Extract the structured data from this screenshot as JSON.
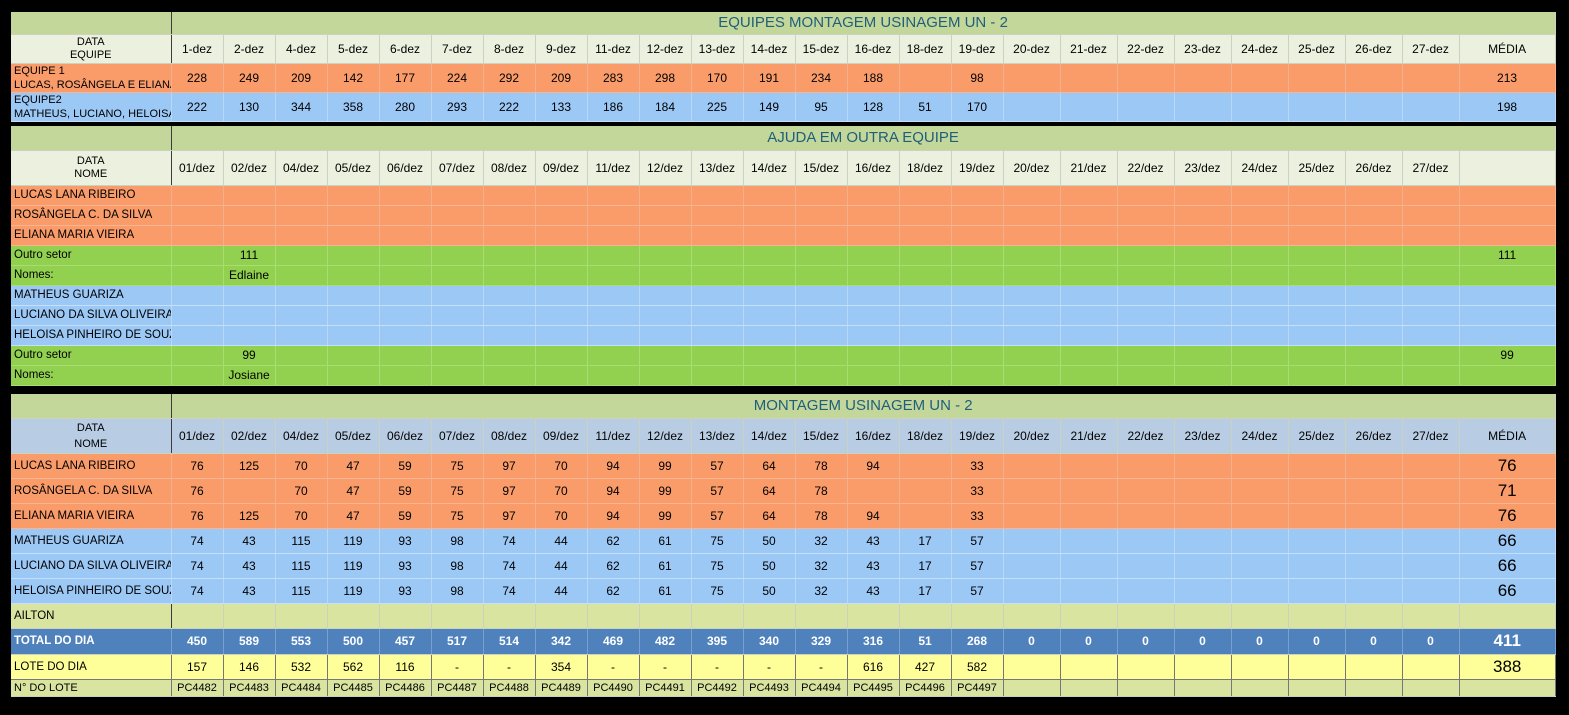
{
  "sec1": {
    "title": "EQUIPES MONTAGEM USINAGEM UN - 2",
    "header_label": [
      "DATA",
      "EQUIPE"
    ],
    "dates": [
      "1-dez",
      "2-dez",
      "4-dez",
      "5-dez",
      "6-dez",
      "7-dez",
      "8-dez",
      "9-dez",
      "11-dez",
      "12-dez",
      "13-dez",
      "14-dez",
      "15-dez",
      "16-dez",
      "18-dez",
      "19-dez",
      "20-dez",
      "21-dez",
      "22-dez",
      "23-dez",
      "24-dez",
      "25-dez",
      "26-dez",
      "27-dez"
    ],
    "media_label": "MÉDIA",
    "rows": [
      {
        "label1": "EQUIPE 1",
        "label2": "LUCAS, ROSÂNGELA E ELIANA",
        "color": "orange",
        "values": [
          "228",
          "249",
          "209",
          "142",
          "177",
          "224",
          "292",
          "209",
          "283",
          "298",
          "170",
          "191",
          "234",
          "188",
          "",
          "98",
          "",
          "",
          "",
          "",
          "",
          "",
          "",
          ""
        ],
        "media": "213"
      },
      {
        "label1": "EQUIPE2",
        "label2": "MATHEUS, LUCIANO, HELOISA",
        "color": "blue",
        "values": [
          "222",
          "130",
          "344",
          "358",
          "280",
          "293",
          "222",
          "133",
          "186",
          "184",
          "225",
          "149",
          "95",
          "128",
          "51",
          "170",
          "",
          "",
          "",
          "",
          "",
          "",
          "",
          ""
        ],
        "media": "198"
      }
    ]
  },
  "sec2": {
    "title": "AJUDA EM OUTRA EQUIPE",
    "header_label": [
      "DATA",
      "NOME"
    ],
    "dates": [
      "01/dez",
      "02/dez",
      "04/dez",
      "05/dez",
      "06/dez",
      "07/dez",
      "08/dez",
      "09/dez",
      "11/dez",
      "12/dez",
      "13/dez",
      "14/dez",
      "15/dez",
      "16/dez",
      "18/dez",
      "19/dez",
      "20/dez",
      "21/dez",
      "22/dez",
      "23/dez",
      "24/dez",
      "25/dez",
      "26/dez",
      "27/dez"
    ],
    "rows": [
      {
        "label": "LUCAS LANA RIBEIRO",
        "color": "orange",
        "values": [
          "",
          "",
          "",
          "",
          "",
          "",
          "",
          "",
          "",
          "",
          "",
          "",
          "",
          "",
          "",
          "",
          "",
          "",
          "",
          "",
          "",
          "",
          "",
          ""
        ],
        "media": ""
      },
      {
        "label": "ROSÂNGELA C. DA SILVA",
        "color": "orange",
        "values": [
          "",
          "",
          "",
          "",
          "",
          "",
          "",
          "",
          "",
          "",
          "",
          "",
          "",
          "",
          "",
          "",
          "",
          "",
          "",
          "",
          "",
          "",
          "",
          ""
        ],
        "media": ""
      },
      {
        "label": "ELIANA MARIA VIEIRA",
        "color": "orange",
        "values": [
          "",
          "",
          "",
          "",
          "",
          "",
          "",
          "",
          "",
          "",
          "",
          "",
          "",
          "",
          "",
          "",
          "",
          "",
          "",
          "",
          "",
          "",
          "",
          ""
        ],
        "media": ""
      },
      {
        "label": "Outro setor",
        "color": "green",
        "values": [
          "",
          "111",
          "",
          "",
          "",
          "",
          "",
          "",
          "",
          "",
          "",
          "",
          "",
          "",
          "",
          "",
          "",
          "",
          "",
          "",
          "",
          "",
          "",
          ""
        ],
        "media": "111"
      },
      {
        "label": "Nomes:",
        "color": "green",
        "values": [
          "",
          "Edlaine",
          "",
          "",
          "",
          "",
          "",
          "",
          "",
          "",
          "",
          "",
          "",
          "",
          "",
          "",
          "",
          "",
          "",
          "",
          "",
          "",
          "",
          ""
        ],
        "media": ""
      },
      {
        "label": "MATHEUS GUARIZA",
        "color": "blue",
        "values": [
          "",
          "",
          "",
          "",
          "",
          "",
          "",
          "",
          "",
          "",
          "",
          "",
          "",
          "",
          "",
          "",
          "",
          "",
          "",
          "",
          "",
          "",
          "",
          ""
        ],
        "media": ""
      },
      {
        "label": "LUCIANO DA SILVA OLIVEIRA",
        "color": "blue",
        "values": [
          "",
          "",
          "",
          "",
          "",
          "",
          "",
          "",
          "",
          "",
          "",
          "",
          "",
          "",
          "",
          "",
          "",
          "",
          "",
          "",
          "",
          "",
          "",
          ""
        ],
        "media": ""
      },
      {
        "label": "HELOISA PINHEIRO DE SOUZA",
        "color": "blue",
        "values": [
          "",
          "",
          "",
          "",
          "",
          "",
          "",
          "",
          "",
          "",
          "",
          "",
          "",
          "",
          "",
          "",
          "",
          "",
          "",
          "",
          "",
          "",
          "",
          ""
        ],
        "media": ""
      },
      {
        "label": "Outro setor",
        "color": "green",
        "values": [
          "",
          "99",
          "",
          "",
          "",
          "",
          "",
          "",
          "",
          "",
          "",
          "",
          "",
          "",
          "",
          "",
          "",
          "",
          "",
          "",
          "",
          "",
          "",
          ""
        ],
        "media": "99"
      },
      {
        "label": "Nomes:",
        "color": "green",
        "values": [
          "",
          "Josiane",
          "",
          "",
          "",
          "",
          "",
          "",
          "",
          "",
          "",
          "",
          "",
          "",
          "",
          "",
          "",
          "",
          "",
          "",
          "",
          "",
          "",
          ""
        ],
        "media": ""
      }
    ]
  },
  "sec3": {
    "title": "MONTAGEM USINAGEM UN - 2",
    "header_label": [
      "DATA",
      "NOME"
    ],
    "dates": [
      "01/dez",
      "02/dez",
      "04/dez",
      "05/dez",
      "06/dez",
      "07/dez",
      "08/dez",
      "09/dez",
      "11/dez",
      "12/dez",
      "13/dez",
      "14/dez",
      "15/dez",
      "16/dez",
      "18/dez",
      "19/dez",
      "20/dez",
      "21/dez",
      "22/dez",
      "23/dez",
      "24/dez",
      "25/dez",
      "26/dez",
      "27/dez"
    ],
    "media_label": "MÉDIA",
    "rows": [
      {
        "label": "LUCAS LANA RIBEIRO",
        "color": "orange",
        "values": [
          "76",
          "125",
          "70",
          "47",
          "59",
          "75",
          "97",
          "70",
          "94",
          "99",
          "57",
          "64",
          "78",
          "94",
          "",
          "33",
          "",
          "",
          "",
          "",
          "",
          "",
          "",
          ""
        ],
        "media": "76"
      },
      {
        "label": "ROSÂNGELA C. DA SILVA",
        "color": "orange",
        "values": [
          "76",
          "",
          "70",
          "47",
          "59",
          "75",
          "97",
          "70",
          "94",
          "99",
          "57",
          "64",
          "78",
          "",
          "",
          "33",
          "",
          "",
          "",
          "",
          "",
          "",
          "",
          ""
        ],
        "media": "71"
      },
      {
        "label": "ELIANA MARIA VIEIRA",
        "color": "orange",
        "values": [
          "76",
          "125",
          "70",
          "47",
          "59",
          "75",
          "97",
          "70",
          "94",
          "99",
          "57",
          "64",
          "78",
          "94",
          "",
          "33",
          "",
          "",
          "",
          "",
          "",
          "",
          "",
          ""
        ],
        "media": "76"
      },
      {
        "label": "MATHEUS GUARIZA",
        "color": "blue",
        "values": [
          "74",
          "43",
          "115",
          "119",
          "93",
          "98",
          "74",
          "44",
          "62",
          "61",
          "75",
          "50",
          "32",
          "43",
          "17",
          "57",
          "",
          "",
          "",
          "",
          "",
          "",
          "",
          ""
        ],
        "media": "66"
      },
      {
        "label": "LUCIANO DA SILVA OLIVEIRA",
        "color": "blue",
        "values": [
          "74",
          "43",
          "115",
          "119",
          "93",
          "98",
          "74",
          "44",
          "62",
          "61",
          "75",
          "50",
          "32",
          "43",
          "17",
          "57",
          "",
          "",
          "",
          "",
          "",
          "",
          "",
          ""
        ],
        "media": "66"
      },
      {
        "label": "HELOISA PINHEIRO DE SOUZA",
        "color": "blue",
        "values": [
          "74",
          "43",
          "115",
          "119",
          "93",
          "98",
          "74",
          "44",
          "62",
          "61",
          "75",
          "50",
          "32",
          "43",
          "17",
          "57",
          "",
          "",
          "",
          "",
          "",
          "",
          "",
          ""
        ],
        "media": "66"
      },
      {
        "label": "AILTON",
        "color": "lime",
        "values": [
          "",
          "",
          "",
          "",
          "",
          "",
          "",
          "",
          "",
          "",
          "",
          "",
          "",
          "",
          "",
          "",
          "",
          "",
          "",
          "",
          "",
          "",
          "",
          ""
        ],
        "media": ""
      }
    ],
    "total": {
      "label": "TOTAL DO DIA",
      "values": [
        "450",
        "589",
        "553",
        "500",
        "457",
        "517",
        "514",
        "342",
        "469",
        "482",
        "395",
        "340",
        "329",
        "316",
        "51",
        "268",
        "0",
        "0",
        "0",
        "0",
        "0",
        "0",
        "0",
        "0"
      ],
      "media": "411"
    },
    "lote": {
      "label": "LOTE DO DIA",
      "values": [
        "157",
        "146",
        "532",
        "562",
        "116",
        "-",
        "-",
        "354",
        "-",
        "-",
        "-",
        "-",
        "-",
        "616",
        "427",
        "582",
        "",
        "",
        "",
        "",
        "",
        "",
        "",
        ""
      ],
      "media": "388"
    },
    "nlote": {
      "label": "N° DO LOTE",
      "values": [
        "PC4482",
        "PC4483",
        "PC4484",
        "PC4485",
        "PC4486",
        "PC4487",
        "PC4488",
        "PC4489",
        "PC4490",
        "PC4491",
        "PC4492",
        "PC4493",
        "PC4494",
        "PC4495",
        "PC4496",
        "PC4497",
        "",
        "",
        "",
        "",
        "",
        "",
        "",
        ""
      ],
      "media": ""
    }
  }
}
